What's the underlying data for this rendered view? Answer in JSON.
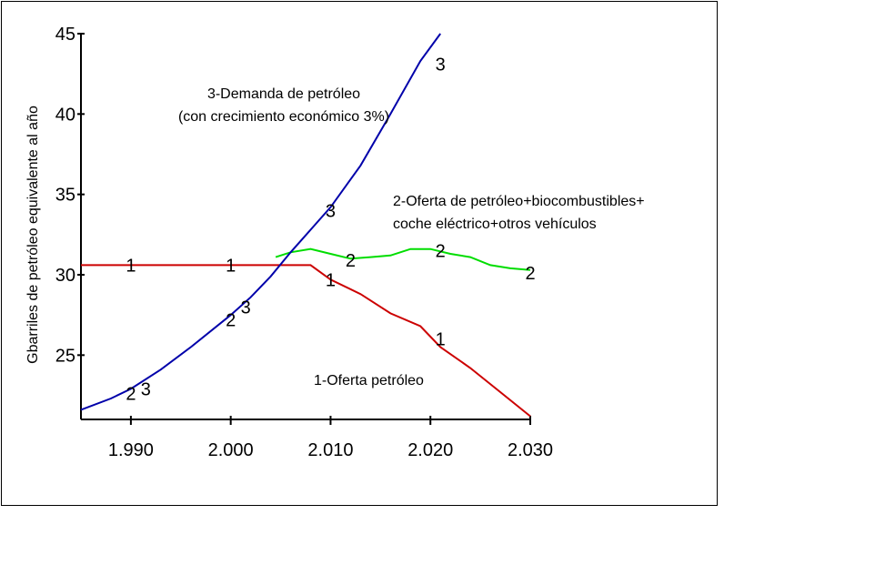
{
  "chart_data": {
    "type": "line",
    "ylabel": "Gbarriles de petróleo equivalente al año",
    "xlabel": "",
    "xlim": [
      1985,
      2030
    ],
    "ylim": [
      21,
      45
    ],
    "x_ticks": [
      1990,
      2000,
      2010,
      2020,
      2030
    ],
    "x_tick_labels": [
      "1.990",
      "2.000",
      "2.010",
      "2.020",
      "2.030"
    ],
    "y_ticks": [
      25,
      30,
      35,
      40,
      45
    ],
    "y_tick_labels": [
      "25",
      "30",
      "35",
      "40",
      "45"
    ],
    "grid": false,
    "annotations": [
      {
        "lines": [
          "3-Demanda de petróleo",
          "(con crecimiento económico 3%)"
        ]
      },
      {
        "lines": [
          "2-Oferta de petróleo+biocombustibles+",
          "coche eléctrico+otros  vehículos"
        ]
      },
      {
        "lines": [
          "1-Oferta  petróleo"
        ]
      }
    ],
    "series": [
      {
        "id": "1",
        "color": "#cc0000",
        "x": [
          1985,
          1990,
          1995,
          2000,
          2005,
          2008,
          2010,
          2013,
          2016,
          2019,
          2021,
          2024,
          2027,
          2030
        ],
        "y": [
          30.6,
          30.6,
          30.6,
          30.6,
          30.6,
          30.6,
          29.7,
          28.8,
          27.6,
          26.8,
          25.5,
          24.2,
          22.7,
          21.2
        ],
        "markers": [
          {
            "x": 1990,
            "y": 30.6
          },
          {
            "x": 2000,
            "y": 30.6
          },
          {
            "x": 2010,
            "y": 29.7
          },
          {
            "x": 2021,
            "y": 26.0
          }
        ]
      },
      {
        "id": "2",
        "color": "#00dd00",
        "x": [
          2004.5,
          2006,
          2008,
          2010,
          2012,
          2014,
          2016,
          2018,
          2020,
          2022,
          2024,
          2026,
          2028,
          2030
        ],
        "y": [
          31.1,
          31.4,
          31.6,
          31.3,
          31.0,
          31.1,
          31.2,
          31.6,
          31.6,
          31.3,
          31.1,
          30.6,
          30.4,
          30.3
        ],
        "markers": [
          {
            "x": 1990,
            "y": 22.6
          },
          {
            "x": 2000,
            "y": 27.2
          },
          {
            "x": 2012,
            "y": 30.9
          },
          {
            "x": 2021,
            "y": 31.5
          },
          {
            "x": 2030,
            "y": 30.1
          }
        ]
      },
      {
        "id": "3",
        "color": "#0000aa",
        "x": [
          1985,
          1988,
          1990,
          1993,
          1996,
          2000,
          2002,
          2004,
          2006,
          2008,
          2010,
          2013,
          2016,
          2019,
          2021
        ],
        "y": [
          21.6,
          22.3,
          22.9,
          24.1,
          25.5,
          27.5,
          28.6,
          29.9,
          31.4,
          32.8,
          34.2,
          36.8,
          40.0,
          43.3,
          45.0
        ],
        "markers": [
          {
            "x": 1991.5,
            "y": 22.9
          },
          {
            "x": 2001.5,
            "y": 28.0
          },
          {
            "x": 2010,
            "y": 34.0
          },
          {
            "x": 2021,
            "y": 43.1
          }
        ]
      }
    ]
  }
}
